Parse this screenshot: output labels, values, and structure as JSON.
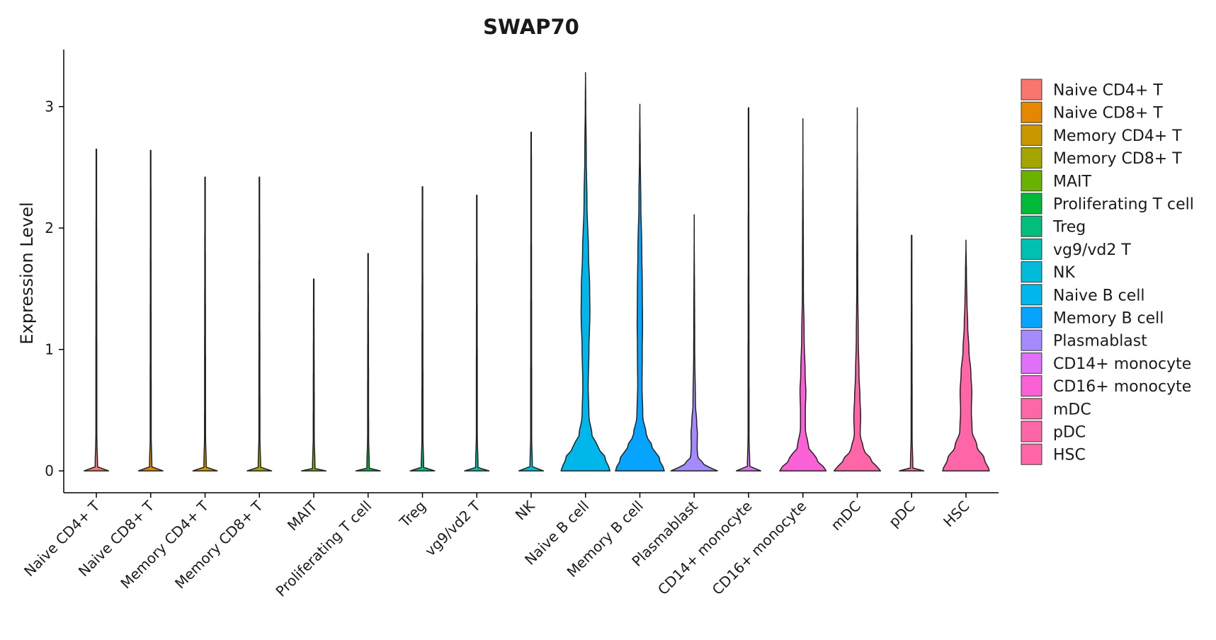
{
  "chart_data": {
    "type": "violin",
    "title": "SWAP70",
    "xlabel": "",
    "ylabel": "Expression Level",
    "ylim": [
      -0.18,
      3.47
    ],
    "yticks": [
      0,
      1,
      2,
      3
    ],
    "ytick_labels": [
      "0",
      "1",
      "2",
      "3"
    ],
    "grid": false,
    "legend_position": "right",
    "categories": [
      {
        "name": "Naive CD4+ T",
        "color": "#F8766D",
        "max": 2.65,
        "profile": [
          [
            0,
            0.5
          ],
          [
            0.02,
            0.05
          ],
          [
            0.3,
            0.02
          ],
          [
            2.65,
            0.01
          ]
        ]
      },
      {
        "name": "Naive CD8+ T",
        "color": "#E58700",
        "max": 2.64,
        "profile": [
          [
            0,
            0.5
          ],
          [
            0.02,
            0.05
          ],
          [
            0.3,
            0.02
          ],
          [
            2.64,
            0.01
          ]
        ]
      },
      {
        "name": "Memory CD4+ T",
        "color": "#C99800",
        "max": 2.42,
        "profile": [
          [
            0,
            0.5
          ],
          [
            0.02,
            0.05
          ],
          [
            0.3,
            0.02
          ],
          [
            2.42,
            0.01
          ]
        ]
      },
      {
        "name": "Memory CD8+ T",
        "color": "#A3A500",
        "max": 2.42,
        "profile": [
          [
            0,
            0.5
          ],
          [
            0.02,
            0.05
          ],
          [
            0.3,
            0.02
          ],
          [
            2.42,
            0.01
          ]
        ]
      },
      {
        "name": "MAIT",
        "color": "#6BB100",
        "max": 1.58,
        "profile": [
          [
            0,
            0.5
          ],
          [
            0.02,
            0.05
          ],
          [
            0.3,
            0.02
          ],
          [
            1.58,
            0.01
          ]
        ]
      },
      {
        "name": "Proliferating T cell",
        "color": "#00BA38",
        "max": 1.79,
        "profile": [
          [
            0,
            0.5
          ],
          [
            0.02,
            0.05
          ],
          [
            0.3,
            0.02
          ],
          [
            1.79,
            0.01
          ]
        ]
      },
      {
        "name": "Treg",
        "color": "#00BF7D",
        "max": 2.34,
        "profile": [
          [
            0,
            0.5
          ],
          [
            0.02,
            0.05
          ],
          [
            0.3,
            0.02
          ],
          [
            2.34,
            0.01
          ]
        ]
      },
      {
        "name": "vg9/vd2 T",
        "color": "#00C0AF",
        "max": 2.27,
        "profile": [
          [
            0,
            0.5
          ],
          [
            0.02,
            0.05
          ],
          [
            0.3,
            0.02
          ],
          [
            2.27,
            0.01
          ]
        ]
      },
      {
        "name": "NK",
        "color": "#00BCD8",
        "max": 2.79,
        "profile": [
          [
            0,
            0.5
          ],
          [
            0.02,
            0.05
          ],
          [
            0.3,
            0.02
          ],
          [
            2.79,
            0.01
          ]
        ]
      },
      {
        "name": "Naive B cell",
        "color": "#00B6EB",
        "max": 3.28,
        "profile": [
          [
            0,
            1
          ],
          [
            0.1,
            0.82
          ],
          [
            0.2,
            0.5
          ],
          [
            0.3,
            0.26
          ],
          [
            0.45,
            0.14
          ],
          [
            0.7,
            0.11
          ],
          [
            1.0,
            0.14
          ],
          [
            1.3,
            0.18
          ],
          [
            1.5,
            0.17
          ],
          [
            1.8,
            0.12
          ],
          [
            2.2,
            0.06
          ],
          [
            2.6,
            0.03
          ],
          [
            3.0,
            0.01
          ],
          [
            3.28,
            0
          ]
        ]
      },
      {
        "name": "Memory B cell",
        "color": "#06A4FF",
        "max": 3.02,
        "profile": [
          [
            0,
            1
          ],
          [
            0.1,
            0.8
          ],
          [
            0.2,
            0.5
          ],
          [
            0.3,
            0.26
          ],
          [
            0.45,
            0.12
          ],
          [
            0.7,
            0.09
          ],
          [
            1.0,
            0.1
          ],
          [
            1.2,
            0.11
          ],
          [
            1.5,
            0.1
          ],
          [
            1.8,
            0.08
          ],
          [
            2.2,
            0.04
          ],
          [
            2.6,
            0.015
          ],
          [
            3.02,
            0
          ]
        ]
      },
      {
        "name": "Plasmablast",
        "color": "#A58AFF",
        "max": 2.11,
        "profile": [
          [
            0,
            0.95
          ],
          [
            0.05,
            0.4
          ],
          [
            0.12,
            0.14
          ],
          [
            0.2,
            0.12
          ],
          [
            0.3,
            0.13
          ],
          [
            0.4,
            0.1
          ],
          [
            0.55,
            0.05
          ],
          [
            1.0,
            0.02
          ],
          [
            2.11,
            0
          ]
        ]
      },
      {
        "name": "CD14+ monocyte",
        "color": "#DF70F8",
        "max": 2.99,
        "profile": [
          [
            0,
            0.5
          ],
          [
            0.02,
            0.05
          ],
          [
            0.3,
            0.02
          ],
          [
            2.99,
            0.01
          ]
        ]
      },
      {
        "name": "CD16+ monocyte",
        "color": "#FB61D7",
        "max": 2.9,
        "profile": [
          [
            0,
            0.95
          ],
          [
            0.1,
            0.55
          ],
          [
            0.2,
            0.22
          ],
          [
            0.35,
            0.1
          ],
          [
            0.5,
            0.1
          ],
          [
            0.65,
            0.12
          ],
          [
            0.8,
            0.09
          ],
          [
            1.1,
            0.05
          ],
          [
            1.5,
            0.02
          ],
          [
            2.9,
            0
          ]
        ]
      },
      {
        "name": "mDC",
        "color": "#FF66A8",
        "max": 2.99,
        "profile": [
          [
            0,
            0.95
          ],
          [
            0.08,
            0.6
          ],
          [
            0.18,
            0.25
          ],
          [
            0.3,
            0.12
          ],
          [
            0.45,
            0.14
          ],
          [
            0.6,
            0.11
          ],
          [
            0.8,
            0.07
          ],
          [
            1.1,
            0.04
          ],
          [
            1.5,
            0.02
          ],
          [
            2.99,
            0
          ]
        ]
      },
      {
        "name": "pDC",
        "color": "#FF66A8",
        "max": 1.94,
        "profile": [
          [
            0,
            0.5
          ],
          [
            0.02,
            0.05
          ],
          [
            0.3,
            0.02
          ],
          [
            1.94,
            0.01
          ]
        ]
      },
      {
        "name": "HSC",
        "color": "#FF66A8",
        "max": 1.9,
        "profile": [
          [
            0,
            0.95
          ],
          [
            0.1,
            0.75
          ],
          [
            0.2,
            0.45
          ],
          [
            0.33,
            0.25
          ],
          [
            0.5,
            0.22
          ],
          [
            0.65,
            0.24
          ],
          [
            0.8,
            0.2
          ],
          [
            1.0,
            0.12
          ],
          [
            1.2,
            0.07
          ],
          [
            1.4,
            0.04
          ],
          [
            1.6,
            0.02
          ],
          [
            1.9,
            0
          ]
        ]
      }
    ],
    "legend": [
      {
        "label": "Naive CD4+ T",
        "color": "#F8766D"
      },
      {
        "label": "Naive CD8+ T",
        "color": "#E58700"
      },
      {
        "label": "Memory CD4+ T",
        "color": "#C99800"
      },
      {
        "label": "Memory CD8+ T",
        "color": "#A3A500"
      },
      {
        "label": "MAIT",
        "color": "#6BB100"
      },
      {
        "label": "Proliferating T cell",
        "color": "#00BA38"
      },
      {
        "label": "Treg",
        "color": "#00BF7D"
      },
      {
        "label": "vg9/vd2 T",
        "color": "#00C0AF"
      },
      {
        "label": "NK",
        "color": "#00BCD8"
      },
      {
        "label": "Naive B cell",
        "color": "#00B6EB"
      },
      {
        "label": "Memory B cell",
        "color": "#06A4FF"
      },
      {
        "label": "Plasmablast",
        "color": "#A58AFF"
      },
      {
        "label": "CD14+ monocyte",
        "color": "#DF70F8"
      },
      {
        "label": "CD16+ monocyte",
        "color": "#FB61D7"
      },
      {
        "label": "mDC",
        "color": "#FF66A8"
      },
      {
        "label": "pDC",
        "color": "#FF66A8"
      },
      {
        "label": "HSC",
        "color": "#FF66A8"
      }
    ]
  }
}
